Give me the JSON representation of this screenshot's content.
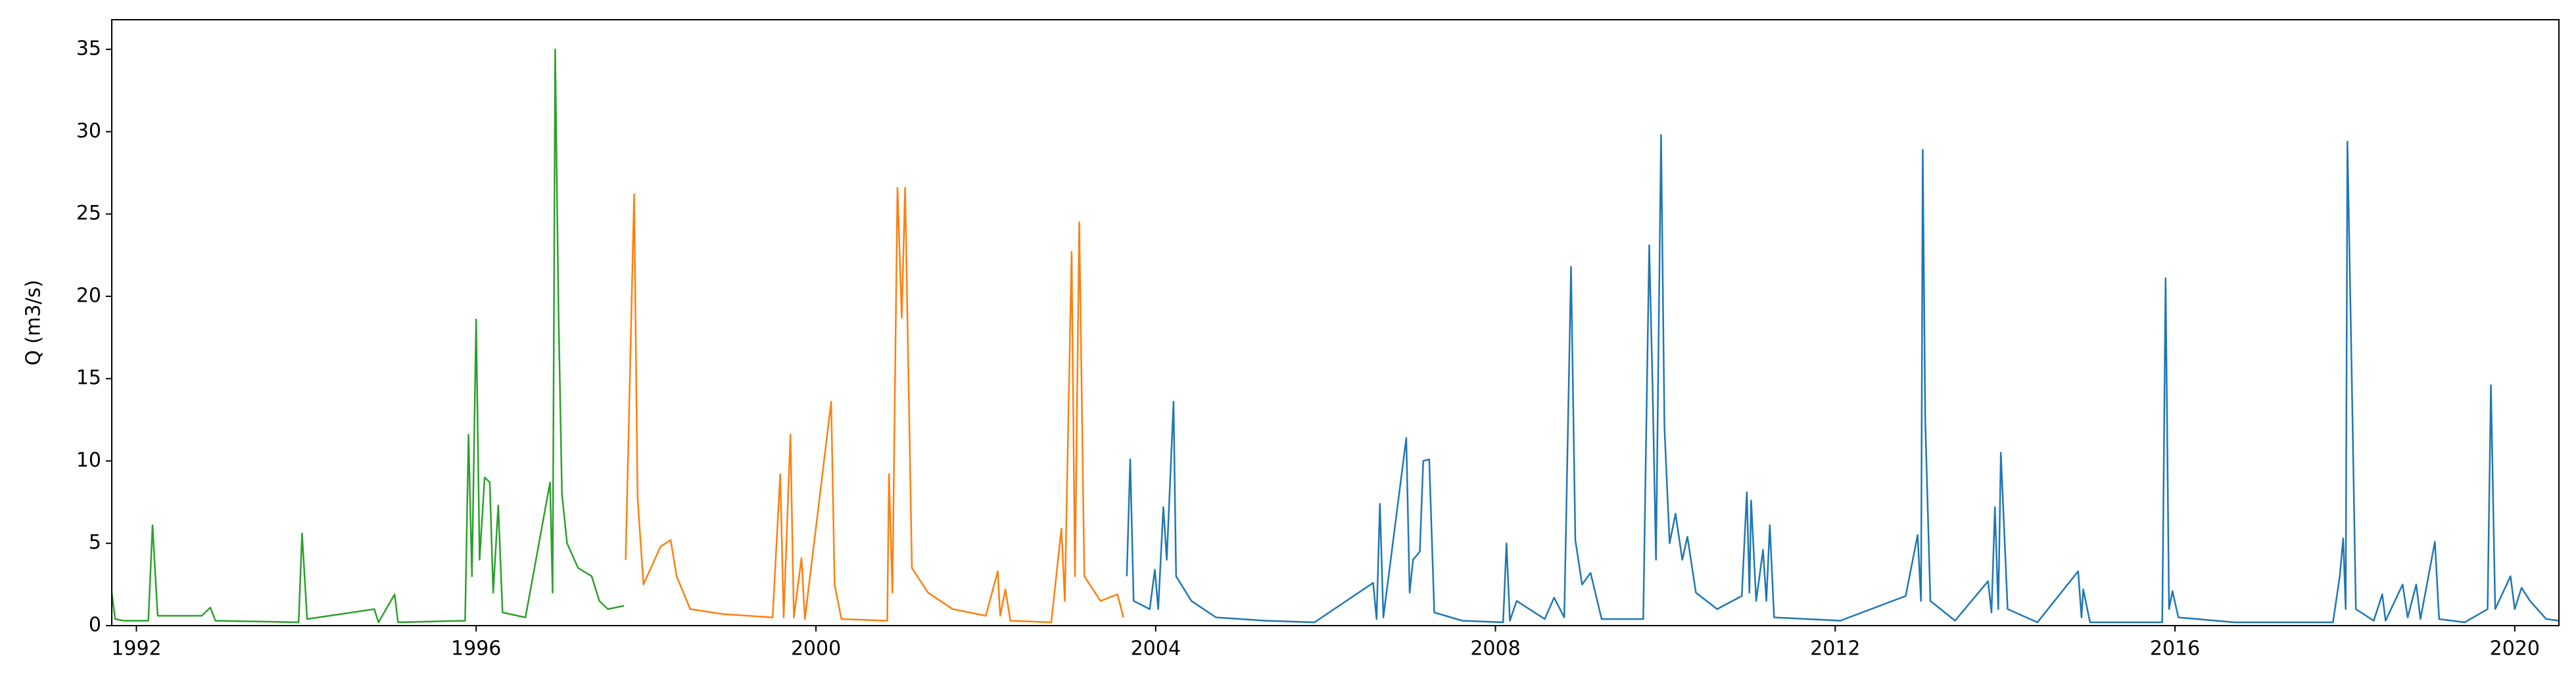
{
  "chart_data": {
    "type": "line",
    "ylabel": "Q (m3/s)",
    "xlim": [
      1991.71,
      2020.52
    ],
    "xticks": [
      1992,
      1996,
      2000,
      2004,
      2008,
      2012,
      2016,
      2020
    ],
    "ylim": [
      0,
      36.8
    ],
    "yticks": [
      0,
      5,
      10,
      15,
      20,
      25,
      30,
      35
    ],
    "grid": false,
    "series": [
      {
        "color": "#2ca02c",
        "x": [
          1991.71,
          1991.75,
          1991.85,
          1992.14,
          1992.19,
          1992.25,
          1992.77,
          1992.87,
          1992.93,
          1993.91,
          1993.95,
          1994.01,
          1994.8,
          1994.85,
          1995.04,
          1995.08,
          1995.87,
          1995.91,
          1995.95,
          1996.0,
          1996.04,
          1996.1,
          1996.16,
          1996.2,
          1996.26,
          1996.31,
          1996.58,
          1996.87,
          1996.9,
          1996.93,
          1996.97,
          1997.01,
          1997.07,
          1997.2,
          1997.36,
          1997.45,
          1997.55,
          1997.74
        ],
        "values": [
          2.0,
          0.4,
          0.3,
          0.3,
          6.1,
          0.6,
          0.6,
          1.1,
          0.3,
          0.2,
          5.6,
          0.4,
          1.0,
          0.2,
          1.9,
          0.2,
          0.3,
          11.6,
          3.0,
          18.6,
          4.0,
          9.0,
          8.7,
          2.0,
          7.3,
          0.8,
          0.5,
          8.7,
          2.0,
          35.0,
          19.0,
          8.0,
          5.0,
          3.5,
          3.0,
          1.5,
          1.0,
          1.2
        ]
      },
      {
        "color": "#ff7f0e",
        "x": [
          1997.76,
          1997.86,
          1997.9,
          1997.97,
          1998.17,
          1998.29,
          1998.36,
          1998.52,
          1998.91,
          1999.49,
          1999.58,
          1999.62,
          1999.7,
          1999.74,
          1999.83,
          1999.87,
          2000.18,
          2000.22,
          2000.3,
          2000.84,
          2000.86,
          2000.9,
          2000.96,
          2001.01,
          2001.05,
          2001.13,
          2001.32,
          2001.61,
          2002.0,
          2002.14,
          2002.17,
          2002.23,
          2002.29,
          2002.77,
          2002.89,
          2002.93,
          2003.01,
          2003.05,
          2003.1,
          2003.16,
          2003.35,
          2003.55,
          2003.62
        ],
        "values": [
          4.0,
          26.2,
          7.8,
          2.5,
          4.8,
          5.2,
          3.0,
          1.0,
          0.7,
          0.5,
          9.2,
          0.5,
          11.6,
          0.5,
          4.1,
          0.4,
          13.6,
          2.5,
          0.4,
          0.3,
          9.2,
          2.0,
          26.6,
          18.7,
          26.6,
          3.5,
          2.0,
          1.0,
          0.6,
          3.3,
          0.6,
          2.2,
          0.3,
          0.2,
          5.9,
          1.5,
          22.7,
          3.0,
          24.5,
          3.0,
          1.5,
          1.9,
          0.5
        ]
      },
      {
        "color": "#1f77b4",
        "x": [
          2003.66,
          2003.7,
          2003.74,
          2003.93,
          2003.99,
          2004.03,
          2004.09,
          2004.13,
          2004.21,
          2004.24,
          2004.42,
          2004.71,
          2005.29,
          2005.87,
          2006.56,
          2006.6,
          2006.64,
          2006.68,
          2006.95,
          2006.99,
          2007.03,
          2007.11,
          2007.15,
          2007.22,
          2007.28,
          2007.61,
          2008.09,
          2008.13,
          2008.17,
          2008.25,
          2008.58,
          2008.69,
          2008.81,
          2008.89,
          2008.94,
          2009.02,
          2009.12,
          2009.25,
          2009.74,
          2009.81,
          2009.85,
          2009.89,
          2009.95,
          2009.99,
          2010.05,
          2010.12,
          2010.2,
          2010.26,
          2010.36,
          2010.61,
          2010.9,
          2010.96,
          2010.99,
          2011.01,
          2011.07,
          2011.15,
          2011.19,
          2011.23,
          2011.28,
          2012.06,
          2012.83,
          2012.97,
          2013.01,
          2013.03,
          2013.06,
          2013.12,
          2013.41,
          2013.8,
          2013.84,
          2013.88,
          2013.92,
          2013.95,
          2014.03,
          2014.38,
          2014.86,
          2014.9,
          2014.92,
          2015.0,
          2015.85,
          2015.89,
          2015.93,
          2015.97,
          2016.04,
          2016.7,
          2017.86,
          2017.94,
          2017.98,
          2018.01,
          2018.03,
          2018.07,
          2018.13,
          2018.34,
          2018.44,
          2018.48,
          2018.68,
          2018.74,
          2018.84,
          2018.89,
          2019.06,
          2019.11,
          2019.41,
          2019.68,
          2019.72,
          2019.77,
          2019.95,
          2020.0,
          2020.08,
          2020.18,
          2020.37,
          2020.52
        ],
        "values": [
          3.0,
          10.1,
          1.5,
          1.0,
          3.4,
          1.0,
          7.2,
          4.0,
          13.6,
          3.0,
          1.5,
          0.5,
          0.3,
          0.2,
          2.6,
          0.4,
          7.4,
          0.5,
          11.4,
          2.0,
          4.0,
          4.5,
          10.0,
          10.1,
          0.8,
          0.3,
          0.2,
          5.0,
          0.3,
          1.5,
          0.4,
          1.7,
          0.5,
          21.8,
          5.2,
          2.5,
          3.2,
          0.4,
          0.4,
          23.1,
          14.5,
          4.0,
          29.8,
          12.0,
          5.0,
          6.8,
          4.0,
          5.4,
          2.0,
          1.0,
          1.8,
          8.1,
          2.0,
          7.6,
          1.5,
          4.6,
          1.5,
          6.1,
          0.5,
          0.3,
          1.8,
          5.5,
          1.5,
          28.9,
          12.5,
          1.5,
          0.3,
          2.7,
          0.8,
          7.2,
          1.0,
          10.5,
          1.0,
          0.2,
          3.3,
          0.5,
          2.2,
          0.2,
          0.2,
          21.1,
          1.0,
          2.1,
          0.5,
          0.2,
          0.2,
          3.0,
          5.3,
          1.0,
          29.4,
          18.3,
          1.0,
          0.3,
          1.9,
          0.3,
          2.5,
          0.5,
          2.5,
          0.4,
          5.1,
          0.4,
          0.2,
          1.0,
          14.6,
          1.0,
          3.0,
          1.0,
          2.3,
          1.5,
          0.4,
          0.3
        ]
      }
    ]
  }
}
